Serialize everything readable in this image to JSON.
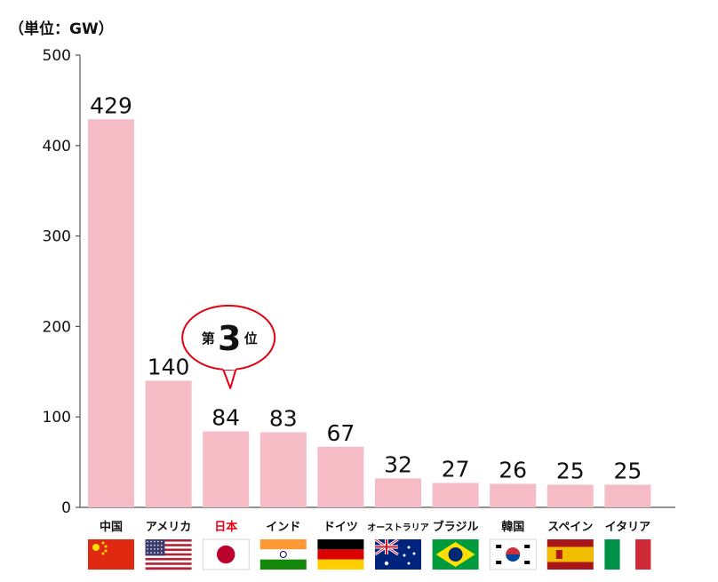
{
  "chart_data": {
    "type": "bar",
    "unit_label": "（単位：GW）",
    "categories": [
      "中国",
      "アメリカ",
      "日本",
      "インド",
      "ドイツ",
      "オーストラリア",
      "ブラジル",
      "韓国",
      "スペイン",
      "イタリア"
    ],
    "values": [
      429,
      140,
      84,
      83,
      67,
      32,
      27,
      26,
      25,
      25
    ],
    "ylim": [
      0,
      500
    ],
    "yticks": [
      0,
      100,
      200,
      300,
      400,
      500
    ],
    "highlight_category": "日本",
    "callout": {
      "prefix": "第",
      "number": "3",
      "suffix": "位"
    },
    "grid": false,
    "legend": "none"
  },
  "colors": {
    "bar": "#f5bcc6",
    "axis": "#555555",
    "text": "#111111",
    "highlight_text": "#e60012",
    "callout_border": "#e60012"
  },
  "flags": [
    "china-flag",
    "usa-flag",
    "japan-flag",
    "india-flag",
    "germany-flag",
    "australia-flag",
    "brazil-flag",
    "south-korea-flag",
    "spain-flag",
    "italy-flag"
  ]
}
